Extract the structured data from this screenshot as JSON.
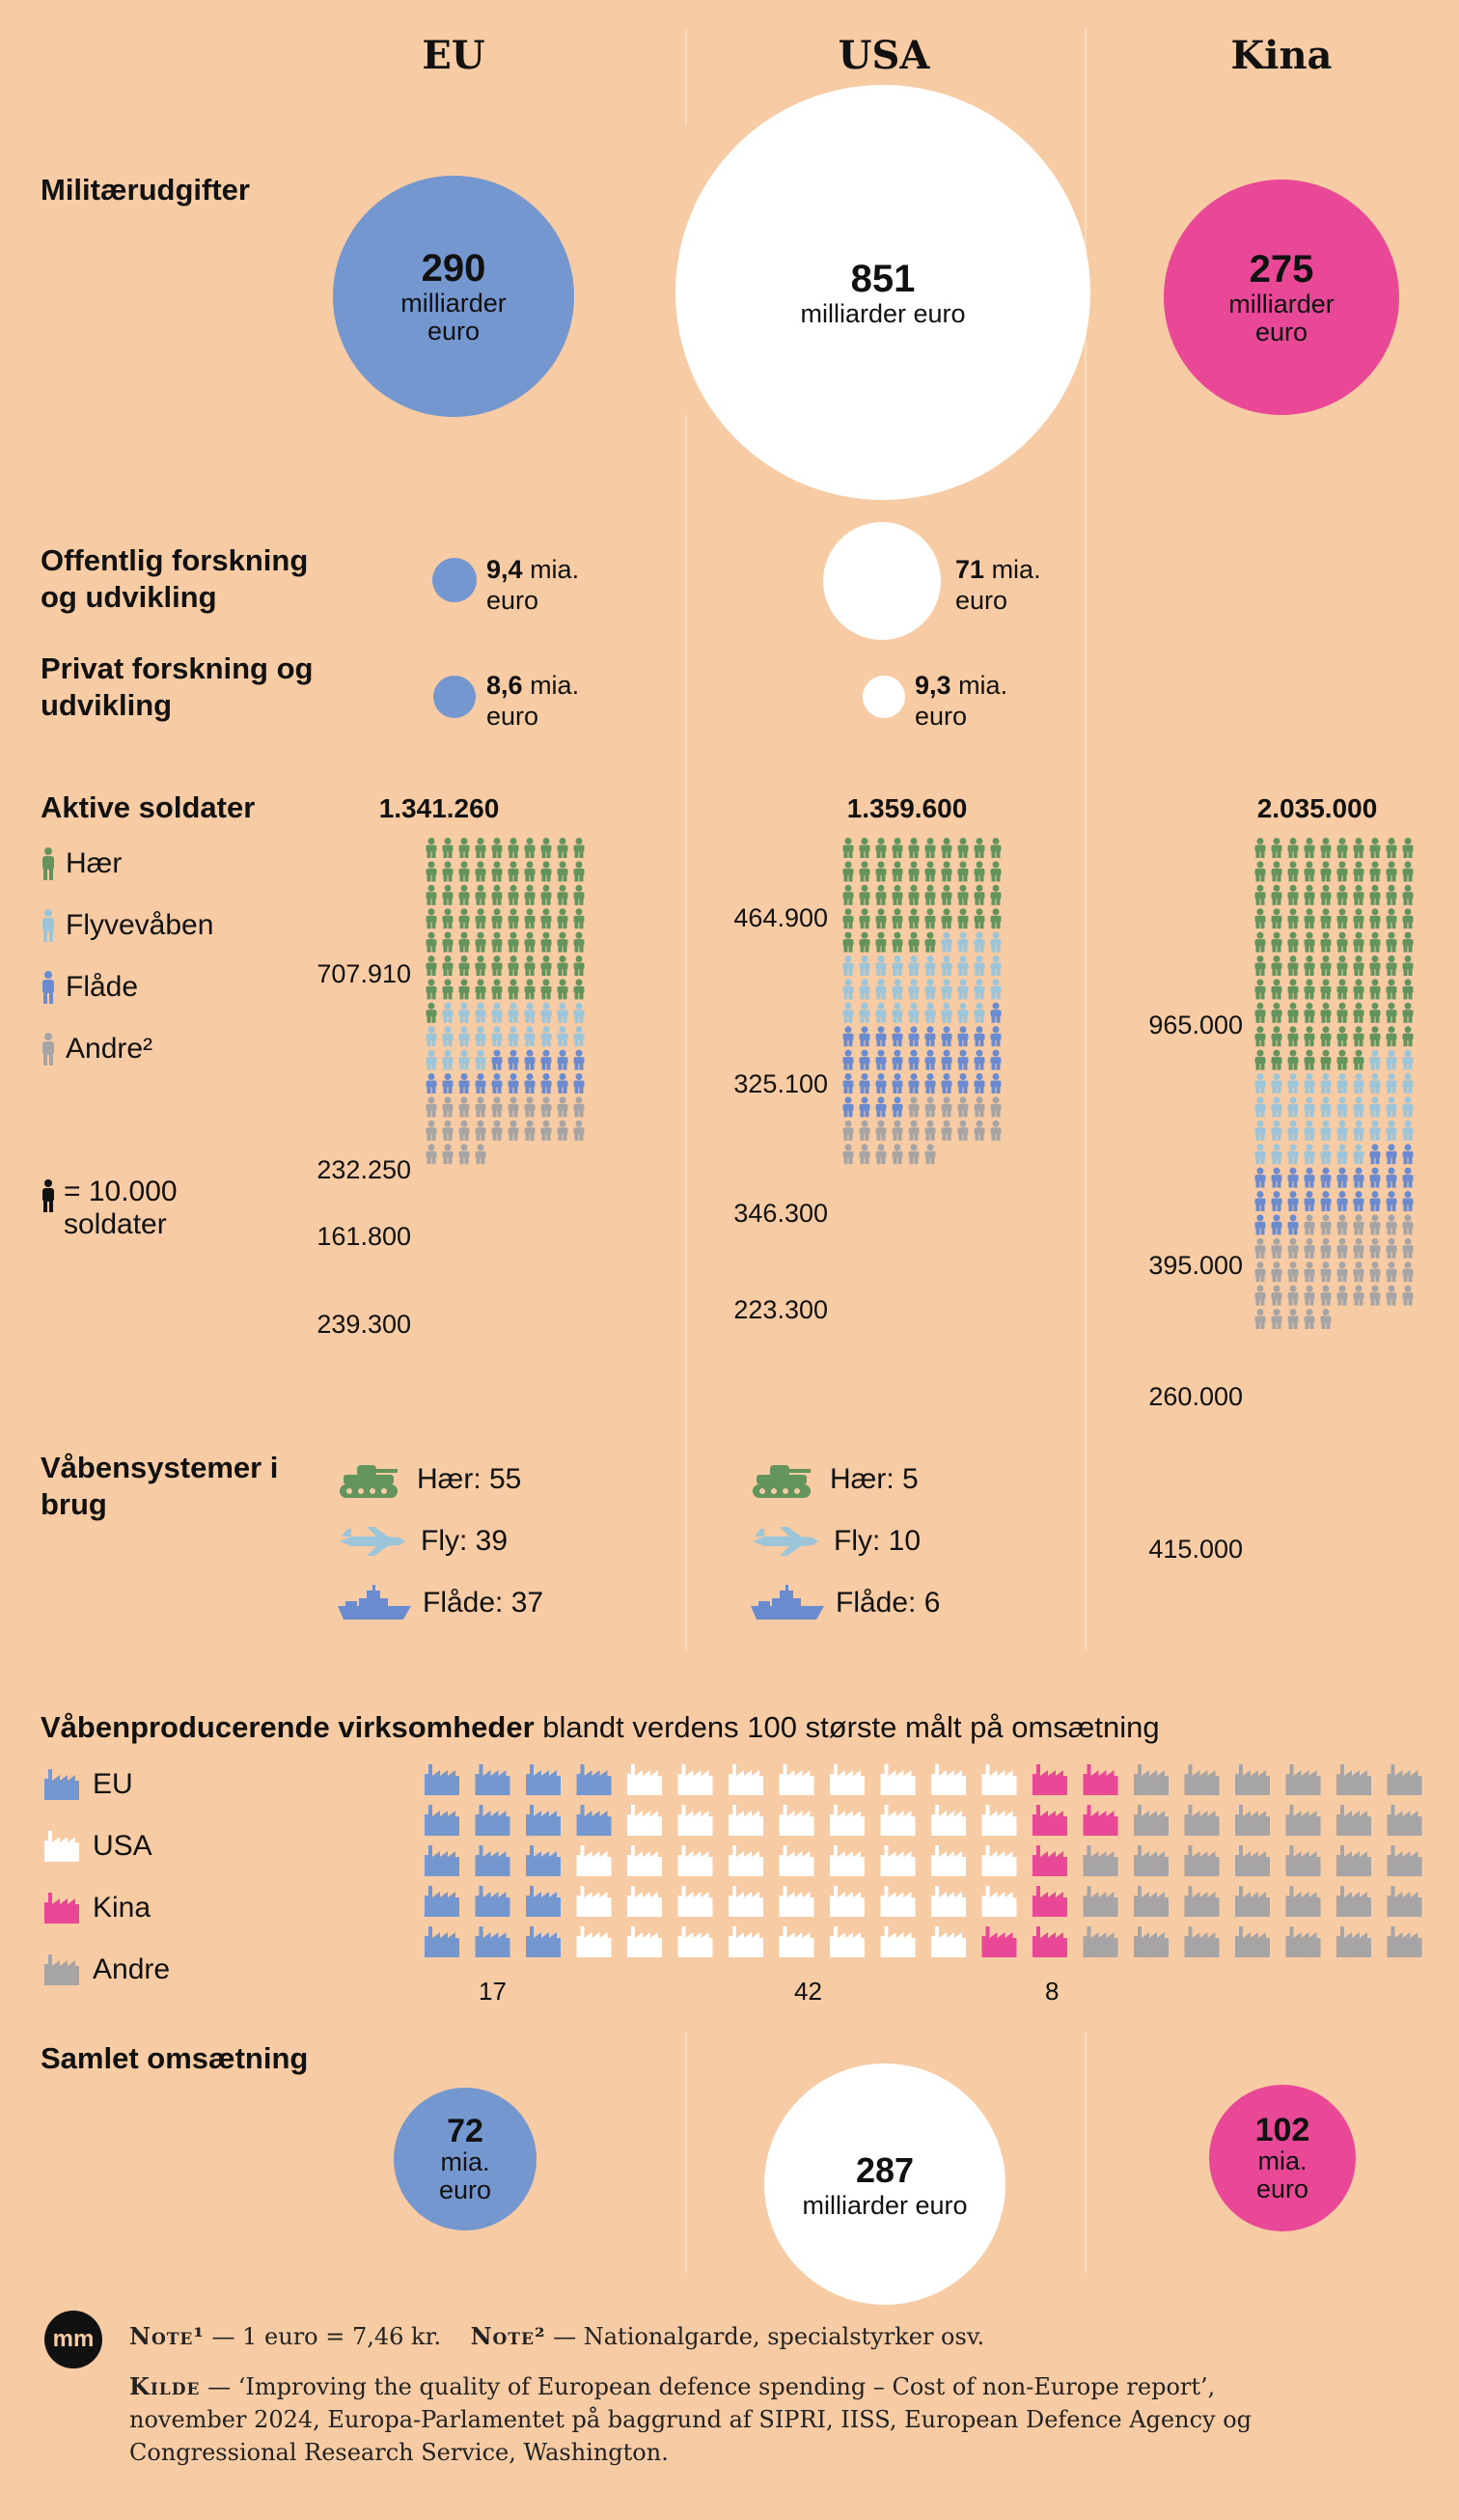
{
  "columns": {
    "eu": "EU",
    "usa": "USA",
    "kina": "Kina"
  },
  "military": {
    "label": "Militærudgifter",
    "eu": {
      "value": "290",
      "unit": "milliarder euro"
    },
    "usa": {
      "value": "851",
      "unit": "milliarder euro"
    },
    "kina": {
      "value": "275",
      "unit": "milliarder euro"
    }
  },
  "research": {
    "public_label": "Offentlig forskning og udvikling",
    "private_label": "Privat forskning og udvikling",
    "eu_public": {
      "value": "9,4",
      "unit": "mia. euro"
    },
    "eu_private": {
      "value": "8,6",
      "unit": "mia. euro"
    },
    "usa_public": {
      "value": "71",
      "unit": "mia. euro"
    },
    "usa_private": {
      "value": "9,3",
      "unit": "mia. euro"
    }
  },
  "soldiers": {
    "label": "Aktive soldater",
    "legend": {
      "army": "Hær",
      "air": "Flyvevåben",
      "navy": "Flåde",
      "other": "Andre²",
      "unit": "= 10.000 soldater"
    },
    "eu": {
      "total": "1.341.260",
      "army": "707.910",
      "air": "232.250",
      "navy": "161.800",
      "other": "239.300"
    },
    "usa": {
      "total": "1.359.600",
      "army": "464.900",
      "air": "325.100",
      "navy": "346.300",
      "other": "223.300"
    },
    "kina": {
      "total": "2.035.000",
      "army": "965.000",
      "air": "395.000",
      "navy": "260.000",
      "other": "415.000"
    }
  },
  "weapons": {
    "label": "Våbensystemer i brug",
    "eu": {
      "army": "Hær: 55",
      "air": "Fly: 39",
      "navy": "Flåde: 37"
    },
    "usa": {
      "army": "Hær: 5",
      "air": "Fly: 10",
      "navy": "Flåde: 6"
    }
  },
  "companies": {
    "label_bold": "Våbenproducerende virksomheder",
    "label_rest": "blandt verdens 100 største målt på omsætning",
    "legend": {
      "eu": "EU",
      "usa": "USA",
      "kina": "Kina",
      "other": "Andre"
    },
    "counts": {
      "eu": "17",
      "usa": "42",
      "kina": "8"
    }
  },
  "revenue": {
    "label": "Samlet omsætning",
    "eu": {
      "value": "72",
      "unit": "mia. euro"
    },
    "usa": {
      "value": "287",
      "unit": "milliarder euro"
    },
    "kina": {
      "value": "102",
      "unit": "mia. euro"
    }
  },
  "notes": {
    "logo": "mm",
    "note1_label": "Note¹",
    "note1_text": "— 1 euro = 7,46 kr.",
    "note2_label": "Note²",
    "note2_text": "— Nationalgarde, specialstyrker osv.",
    "source_label": "Kilde",
    "source_text": "— ‘Improving the quality of European defence spending – Cost of non-Europe report’, november 2024, Europa-Parlamentet på baggrund af SIPRI, IISS, European Defence Agency og Congressional Research Service, Washington."
  },
  "colors": {
    "background": "#f7cba3",
    "eu": "#7597cf",
    "usa": "#ffffff",
    "kina": "#e84896",
    "army": "#62945c",
    "air": "#9cc5d9",
    "navy": "#6b8bd1",
    "other": "#a6a4a4"
  },
  "chart_data": [
    {
      "type": "bubble",
      "title": "Militærudgifter",
      "unit": "milliarder euro",
      "categories": [
        "EU",
        "USA",
        "Kina"
      ],
      "values": [
        290,
        851,
        275
      ]
    },
    {
      "type": "bubble",
      "title": "Offentlig forskning og udvikling",
      "unit": "mia. euro",
      "categories": [
        "EU",
        "USA"
      ],
      "values": [
        9.4,
        71
      ]
    },
    {
      "type": "bubble",
      "title": "Privat forskning og udvikling",
      "unit": "mia. euro",
      "categories": [
        "EU",
        "USA"
      ],
      "values": [
        8.6,
        9.3
      ]
    },
    {
      "type": "pictogram",
      "title": "Aktive soldater",
      "unit_per_icon": 10000,
      "categories": [
        "EU",
        "USA",
        "Kina"
      ],
      "series": [
        {
          "name": "Hær",
          "values": [
            707910,
            464900,
            965000
          ]
        },
        {
          "name": "Flyvevåben",
          "values": [
            232250,
            325100,
            395000
          ]
        },
        {
          "name": "Flåde",
          "values": [
            161800,
            346300,
            260000
          ]
        },
        {
          "name": "Andre²",
          "values": [
            239300,
            223300,
            415000
          ]
        }
      ],
      "totals": [
        1341260,
        1359600,
        2035000
      ]
    },
    {
      "type": "table",
      "title": "Våbensystemer i brug",
      "categories": [
        "EU",
        "USA"
      ],
      "series": [
        {
          "name": "Hær",
          "values": [
            55,
            5
          ]
        },
        {
          "name": "Fly",
          "values": [
            39,
            10
          ]
        },
        {
          "name": "Flåde",
          "values": [
            37,
            6
          ]
        }
      ]
    },
    {
      "type": "pictogram",
      "title": "Våbenproducerende virksomheder",
      "categories": [
        "EU",
        "USA",
        "Kina",
        "Andre"
      ],
      "values": [
        17,
        42,
        8,
        33
      ]
    },
    {
      "type": "bubble",
      "title": "Samlet omsætning",
      "unit": "milliarder euro",
      "categories": [
        "EU",
        "USA",
        "Kina"
      ],
      "values": [
        72,
        287,
        102
      ]
    }
  ]
}
